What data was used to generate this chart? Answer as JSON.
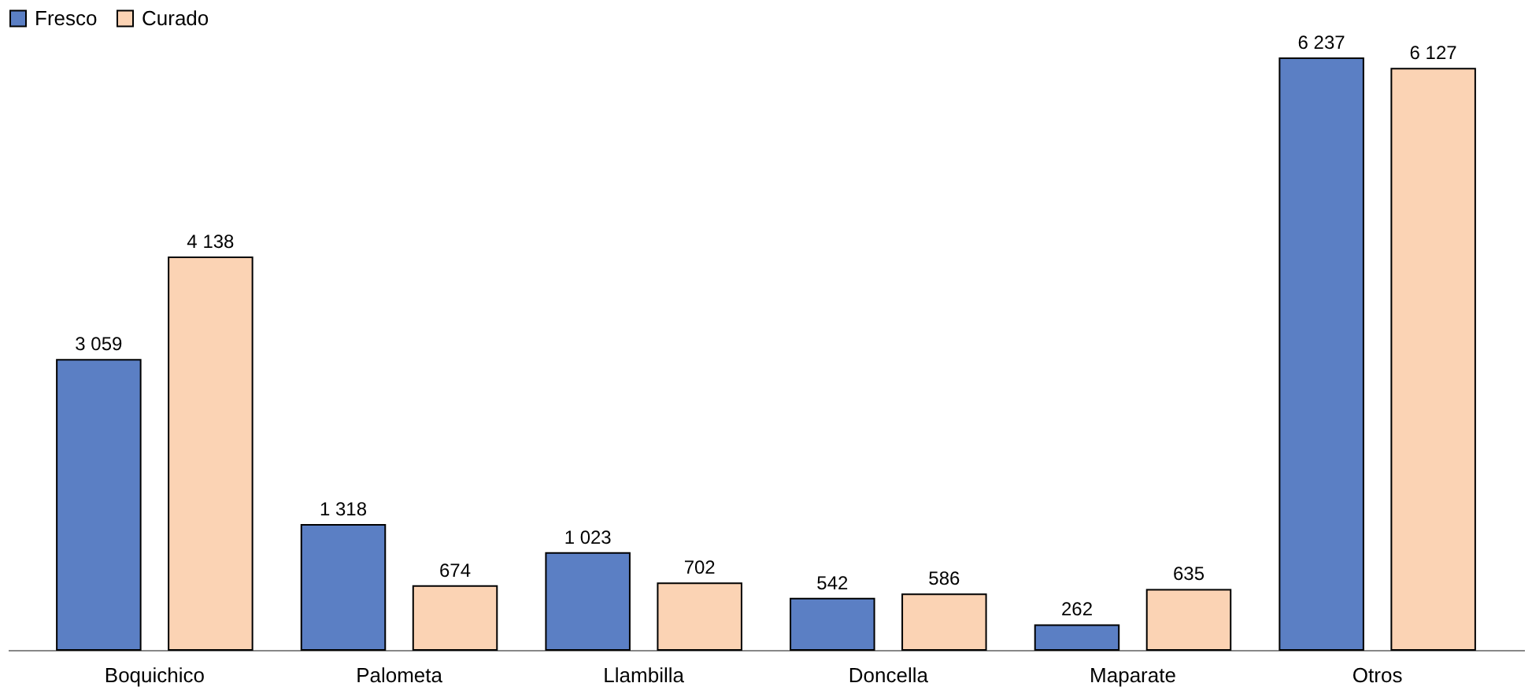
{
  "chart_data": {
    "type": "bar",
    "categories": [
      "Boquichico",
      "Palometa",
      "Llambilla",
      "Doncella",
      "Maparate",
      "Otros"
    ],
    "series": [
      {
        "name": "Fresco",
        "color": "#5b7fc4",
        "values": [
          3059,
          1318,
          1023,
          542,
          262,
          6237
        ],
        "value_labels": [
          "3 059",
          "1 318",
          "1 023",
          "542",
          "262",
          "6 237"
        ]
      },
      {
        "name": "Curado",
        "color": "#fbd3b4",
        "values": [
          4138,
          674,
          702,
          586,
          635,
          6127
        ],
        "value_labels": [
          "4 138",
          "674",
          "702",
          "586",
          "635",
          "6 127"
        ]
      }
    ],
    "legend": "top",
    "grid": false
  }
}
